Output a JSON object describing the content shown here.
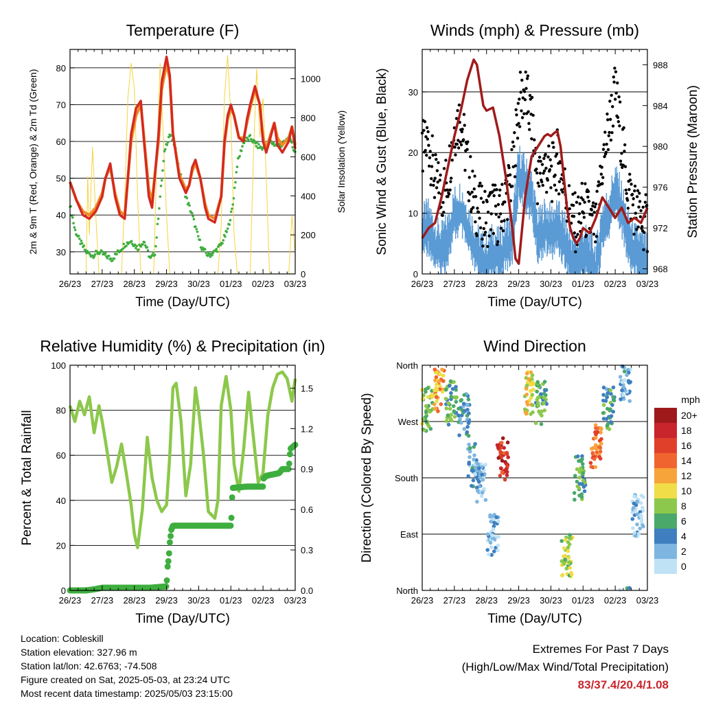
{
  "x_ticks": [
    "26/23",
    "27/23",
    "28/23",
    "29/23",
    "30/23",
    "01/23",
    "02/23",
    "03/23"
  ],
  "xlabel": "Time (Day/UTC)",
  "colors": {
    "temp_2m": "#d42a20",
    "temp_9m": "#f08a24",
    "dewpoint": "#3fae3f",
    "solar": "#f5d33c",
    "wind": "#5b9bd5",
    "gust": "#000000",
    "pressure": "#a01b1b",
    "rh": "#8cc84b",
    "precip": "#3fae3f",
    "extremes": "#c8252c"
  },
  "chart_data": [
    {
      "id": "temperature",
      "type": "line",
      "title": "Temperature (F)",
      "xlabel": "Time (Day/UTC)",
      "ylabel": "2m & 9m T (Red, Orange) & 2m Td (Green)",
      "ylabel_right": "Solar Insolation (Yellow)",
      "ylim": [
        24,
        85
      ],
      "yticks": [
        30,
        40,
        50,
        60,
        70,
        80
      ],
      "ylim_right": [
        0,
        1150
      ],
      "yticks_right": [
        0,
        200,
        400,
        600,
        800,
        1000
      ],
      "grid": true,
      "series": [
        {
          "name": "2m T",
          "x": [
            0,
            0.2,
            0.4,
            0.6,
            0.8,
            1.0,
            1.1,
            1.25,
            1.4,
            1.55,
            1.7,
            1.8,
            1.9,
            2.05,
            2.2,
            2.3,
            2.45,
            2.55,
            2.75,
            2.85,
            3.0,
            3.1,
            3.2,
            3.4,
            3.6,
            3.7,
            3.8,
            3.9,
            4.05,
            4.2,
            4.3,
            4.5,
            4.7,
            4.8,
            4.9,
            5.0,
            5.1,
            5.25,
            5.4,
            5.5,
            5.6,
            5.75,
            5.9,
            6.0,
            6.1,
            6.2,
            6.35,
            6.45,
            6.6,
            6.8,
            6.9,
            7.0
          ],
          "values": [
            49,
            44,
            40,
            39,
            41,
            45,
            50,
            54,
            45,
            40,
            39,
            50,
            62,
            69,
            71,
            60,
            45,
            42,
            62,
            76,
            83,
            78,
            62,
            50,
            46,
            48,
            53,
            55,
            50,
            42,
            39,
            38,
            45,
            60,
            67,
            70,
            67,
            61,
            60,
            66,
            70,
            75,
            70,
            60,
            57,
            60,
            65,
            59,
            57,
            60,
            64,
            58
          ]
        },
        {
          "name": "9m T",
          "x": [
            0,
            0.2,
            0.4,
            0.6,
            0.8,
            1.0,
            1.1,
            1.25,
            1.4,
            1.55,
            1.7,
            1.8,
            1.9,
            2.05,
            2.2,
            2.3,
            2.45,
            2.55,
            2.75,
            2.85,
            3.0,
            3.1,
            3.2,
            3.4,
            3.6,
            3.7,
            3.8,
            3.9,
            4.05,
            4.2,
            4.3,
            4.5,
            4.7,
            4.8,
            4.9,
            5.0,
            5.1,
            5.25,
            5.4,
            5.5,
            5.6,
            5.75,
            5.9,
            6.0,
            6.1,
            6.2,
            6.35,
            6.45,
            6.6,
            6.8,
            6.9,
            7.0
          ],
          "values": [
            49,
            44,
            41,
            40,
            42,
            46,
            50,
            53,
            46,
            41,
            40,
            50,
            60,
            67,
            70,
            61,
            47,
            44,
            60,
            74,
            81,
            77,
            62,
            51,
            47,
            48,
            52,
            54,
            50,
            43,
            40,
            39,
            45,
            59,
            66,
            69,
            67,
            61,
            61,
            65,
            69,
            74,
            70,
            61,
            58,
            61,
            65,
            61,
            59,
            61,
            64,
            59
          ]
        },
        {
          "name": "2m Td",
          "x": [
            0,
            0.15,
            0.3,
            0.5,
            0.7,
            0.9,
            1.1,
            1.3,
            1.5,
            1.7,
            1.9,
            2.1,
            2.3,
            2.5,
            2.65,
            2.8,
            2.95,
            3.1,
            3.25,
            3.4,
            3.6,
            3.8,
            3.95,
            4.1,
            4.3,
            4.5,
            4.7,
            4.9,
            5.05,
            5.2,
            5.4,
            5.6,
            5.8,
            6.0,
            6.2,
            6.4,
            6.6,
            6.8,
            7.0
          ],
          "values": [
            43,
            36,
            33,
            30,
            29,
            30,
            29,
            28,
            30,
            32,
            33,
            31,
            33,
            28,
            30,
            45,
            58,
            62,
            59,
            52,
            45,
            40,
            35,
            31,
            29,
            30,
            32,
            36,
            42,
            54,
            60,
            61,
            59,
            58,
            60,
            59,
            59,
            61,
            57
          ]
        },
        {
          "name": "Solar Insolation",
          "axis": "right",
          "x": [
            0,
            0.1,
            0.2,
            0.3,
            0.4,
            0.5,
            0.55,
            0.6,
            0.7,
            0.8,
            0.9,
            1.0,
            1.1,
            1.2,
            1.3,
            1.4,
            1.5,
            1.6,
            1.7,
            1.8,
            1.9,
            2.0,
            2.1,
            2.2,
            2.3,
            2.4,
            2.5,
            2.6,
            2.7,
            2.8,
            2.9,
            3.0,
            3.1,
            3.2,
            3.3,
            3.4,
            3.5,
            3.6,
            3.7,
            3.8,
            3.9,
            4.0,
            4.1,
            4.2,
            4.3,
            4.4,
            4.5,
            4.6,
            4.7,
            4.8,
            4.9,
            5.0,
            5.1,
            5.2,
            5.3,
            5.4,
            5.5,
            5.6,
            5.7,
            5.8,
            5.9,
            6.0,
            6.1,
            6.2,
            6.3,
            6.4,
            6.5,
            6.6,
            6.7,
            6.8,
            6.9,
            7.0
          ],
          "values": [
            0,
            0,
            0,
            0,
            0,
            0,
            500,
            200,
            650,
            300,
            0,
            0,
            0,
            0,
            0,
            0,
            0,
            0,
            400,
            900,
            1080,
            950,
            400,
            0,
            0,
            0,
            0,
            0,
            600,
            1080,
            700,
            300,
            0,
            0,
            0,
            0,
            0,
            0,
            0,
            0,
            0,
            0,
            0,
            0,
            0,
            0,
            0,
            0,
            250,
            900,
            1120,
            800,
            200,
            0,
            0,
            0,
            0,
            0,
            600,
            1050,
            700,
            900,
            500,
            0,
            0,
            0,
            0,
            0,
            0,
            0,
            300,
            100
          ]
        }
      ]
    },
    {
      "id": "winds",
      "type": "line",
      "title": "Winds (mph) & Pressure (mb)",
      "xlabel": "Time (Day/UTC)",
      "ylabel": "Sonic Wind & Gust (Blue, Black)",
      "ylabel_right": "Station Pressure (Maroon)",
      "ylim": [
        0,
        37
      ],
      "yticks": [
        0,
        10,
        20,
        30
      ],
      "ylim_right": [
        967.5,
        989.5
      ],
      "yticks_right": [
        968,
        972,
        976,
        980,
        984,
        988
      ],
      "grid": true,
      "series": [
        {
          "name": "Sonic Wind",
          "x": [
            0,
            0.2,
            0.4,
            0.6,
            0.8,
            1.0,
            1.2,
            1.4,
            1.6,
            1.8,
            2.0,
            2.2,
            2.4,
            2.6,
            2.8,
            3.0,
            3.2,
            3.4,
            3.6,
            3.8,
            4.0,
            4.2,
            4.4,
            4.6,
            4.8,
            5.0,
            5.2,
            5.4,
            5.6,
            5.8,
            6.0,
            6.2,
            6.4,
            6.6,
            6.8,
            7.0
          ],
          "values": [
            9,
            10,
            7,
            6,
            8,
            12,
            13,
            10,
            7,
            5,
            4,
            6,
            5,
            7,
            8,
            19,
            17,
            15,
            8,
            10,
            9,
            10,
            8,
            5,
            4,
            6,
            5,
            3,
            10,
            12,
            16,
            13,
            8,
            6,
            5,
            4
          ]
        },
        {
          "name": "Gust",
          "x": [
            0,
            0.2,
            0.4,
            0.6,
            0.8,
            1.0,
            1.2,
            1.4,
            1.6,
            1.8,
            2.0,
            2.2,
            2.4,
            2.6,
            2.8,
            3.0,
            3.2,
            3.4,
            3.6,
            3.8,
            4.0,
            4.2,
            4.4,
            4.6,
            4.8,
            5.0,
            5.2,
            5.4,
            5.6,
            5.8,
            6.0,
            6.2,
            6.4,
            6.6,
            6.8,
            7.0
          ],
          "values": [
            20,
            22,
            15,
            13,
            16,
            24,
            26,
            18,
            12,
            10,
            9,
            11,
            9,
            13,
            16,
            28,
            30,
            25,
            15,
            18,
            16,
            19,
            15,
            10,
            8,
            11,
            9,
            7,
            18,
            24,
            30,
            22,
            14,
            11,
            9,
            8
          ]
        },
        {
          "name": "Station Pressure",
          "axis": "right",
          "x": [
            0,
            0.2,
            0.4,
            0.6,
            0.8,
            1.0,
            1.2,
            1.4,
            1.6,
            1.7,
            1.8,
            1.9,
            2.0,
            2.2,
            2.4,
            2.6,
            2.8,
            2.9,
            3.0,
            3.2,
            3.4,
            3.6,
            3.8,
            3.9,
            4.0,
            4.1,
            4.2,
            4.3,
            4.4,
            4.5,
            4.6,
            4.7,
            4.8,
            4.9,
            5.0,
            5.2,
            5.4,
            5.6,
            5.8,
            6.0,
            6.2,
            6.4,
            6.6,
            6.8,
            7.0
          ],
          "values": [
            971,
            972,
            972.5,
            975,
            978,
            981,
            983.5,
            986.5,
            988.5,
            988,
            986,
            984,
            983.5,
            983.8,
            981,
            977,
            972,
            969,
            968.5,
            975,
            979,
            980,
            981,
            981.2,
            981,
            981.3,
            981.5,
            980,
            977,
            974,
            972,
            971,
            970.5,
            971,
            972,
            971.5,
            973,
            975,
            974,
            973,
            974,
            972.5,
            973,
            972.5,
            974
          ]
        }
      ]
    },
    {
      "id": "humidity",
      "type": "line",
      "title": "Relative Humidity (%) & Precipitation (in)",
      "xlabel": "Time (Day/UTC)",
      "ylabel": "Percent & Total Rainfall",
      "ylim": [
        0,
        100
      ],
      "yticks": [
        0,
        20,
        40,
        60,
        80,
        100
      ],
      "ylim_right": [
        0,
        1.67
      ],
      "yticks_right": [
        0.0,
        0.3,
        0.6,
        0.9,
        1.2,
        1.5
      ],
      "ytick_labels_right": [
        "0.0",
        "0.3",
        "0.6",
        "0.9",
        "1.2",
        "1.5"
      ],
      "grid": true,
      "series": [
        {
          "name": "Relative Humidity",
          "x": [
            0,
            0.15,
            0.3,
            0.45,
            0.6,
            0.75,
            0.9,
            1.0,
            1.15,
            1.3,
            1.45,
            1.6,
            1.75,
            1.9,
            2.0,
            2.1,
            2.25,
            2.4,
            2.55,
            2.7,
            2.85,
            3.0,
            3.1,
            3.2,
            3.3,
            3.45,
            3.6,
            3.75,
            3.9,
            4.0,
            4.15,
            4.3,
            4.5,
            4.6,
            4.7,
            4.85,
            5.0,
            5.1,
            5.25,
            5.4,
            5.55,
            5.7,
            5.85,
            6.0,
            6.15,
            6.3,
            6.45,
            6.6,
            6.75,
            6.9,
            7.0
          ],
          "values": [
            82,
            75,
            84,
            78,
            86,
            70,
            82,
            75,
            62,
            48,
            55,
            65,
            52,
            38,
            25,
            19,
            36,
            68,
            50,
            40,
            35,
            38,
            60,
            90,
            92,
            75,
            42,
            56,
            90,
            80,
            60,
            35,
            32,
            40,
            82,
            95,
            80,
            56,
            44,
            63,
            88,
            68,
            48,
            52,
            78,
            90,
            96,
            97,
            94,
            84,
            94
          ]
        },
        {
          "name": "Total Rainfall",
          "axis": "right",
          "x": [
            0,
            0.5,
            0.8,
            1.0,
            1.5,
            2.0,
            2.5,
            3.0,
            3.05,
            3.06,
            3.1,
            3.15,
            3.2,
            3.5,
            4.0,
            4.5,
            5.0,
            5.02,
            5.05,
            5.5,
            6.0,
            6.02,
            6.1,
            6.5,
            6.6,
            6.8,
            6.85,
            7.0
          ],
          "values": [
            0,
            0,
            0.01,
            0.02,
            0.02,
            0.02,
            0.02,
            0.03,
            0.25,
            0.2,
            0.35,
            0.45,
            0.48,
            0.48,
            0.48,
            0.48,
            0.48,
            0.55,
            0.76,
            0.77,
            0.77,
            0.83,
            0.85,
            0.87,
            0.9,
            0.9,
            1.05,
            1.08
          ]
        }
      ]
    },
    {
      "id": "direction",
      "type": "scatter",
      "title": "Wind Direction",
      "xlabel": "Time (Day/UTC)",
      "ylabel": "Direction (Colored By Speed)",
      "ylim": [
        0,
        360
      ],
      "yticks": [
        0,
        90,
        180,
        270,
        360
      ],
      "ytick_labels": [
        "North",
        "East",
        "South",
        "West",
        "North"
      ],
      "grid": true,
      "legend_title": "mph",
      "legend_labels": [
        "20+",
        "18",
        "16",
        "14",
        "12",
        "10",
        "8",
        "6",
        "4",
        "2",
        "0"
      ],
      "legend_colors": [
        "#9e1a1a",
        "#c8252c",
        "#e0402a",
        "#f0652f",
        "#f7a43a",
        "#f0dd47",
        "#8cc84b",
        "#4aa86a",
        "#3f7fbf",
        "#7db6e0",
        "#bfe2f5"
      ],
      "clusters": [
        {
          "x": 0.15,
          "dir": 290,
          "speed": 8
        },
        {
          "x": 0.55,
          "dir": 320,
          "speed": 12
        },
        {
          "x": 0.9,
          "dir": 300,
          "speed": 6
        },
        {
          "x": 1.3,
          "dir": 280,
          "speed": 4
        },
        {
          "x": 1.6,
          "dir": 200,
          "speed": 3
        },
        {
          "x": 1.8,
          "dir": 170,
          "speed": 2
        },
        {
          "x": 2.2,
          "dir": 90,
          "speed": 1
        },
        {
          "x": 2.5,
          "dir": 210,
          "speed": 17
        },
        {
          "x": 3.3,
          "dir": 315,
          "speed": 10
        },
        {
          "x": 3.7,
          "dir": 300,
          "speed": 6
        },
        {
          "x": 4.5,
          "dir": 55,
          "speed": 8
        },
        {
          "x": 4.9,
          "dir": 180,
          "speed": 6
        },
        {
          "x": 5.4,
          "dir": 230,
          "speed": 14
        },
        {
          "x": 5.8,
          "dir": 290,
          "speed": 5
        },
        {
          "x": 6.3,
          "dir": 330,
          "speed": 3
        },
        {
          "x": 6.7,
          "dir": 120,
          "speed": 1
        }
      ]
    }
  ],
  "info": {
    "location": "Location: Cobleskill",
    "elevation": "Station elevation: 327.96 m",
    "latlon": "Station lat/lon: 42.6763; -74.508",
    "created": "Figure created on Sat, 2025-05-03, at 23:24 UTC",
    "recent": "Most recent data timestamp: 2025/05/03 23:15:00"
  },
  "extremes": {
    "title": "Extremes For Past 7 Days",
    "subtitle": "(High/Low/Max Wind/Total Precipitation)",
    "values": "83/37.4/20.4/1.08"
  }
}
